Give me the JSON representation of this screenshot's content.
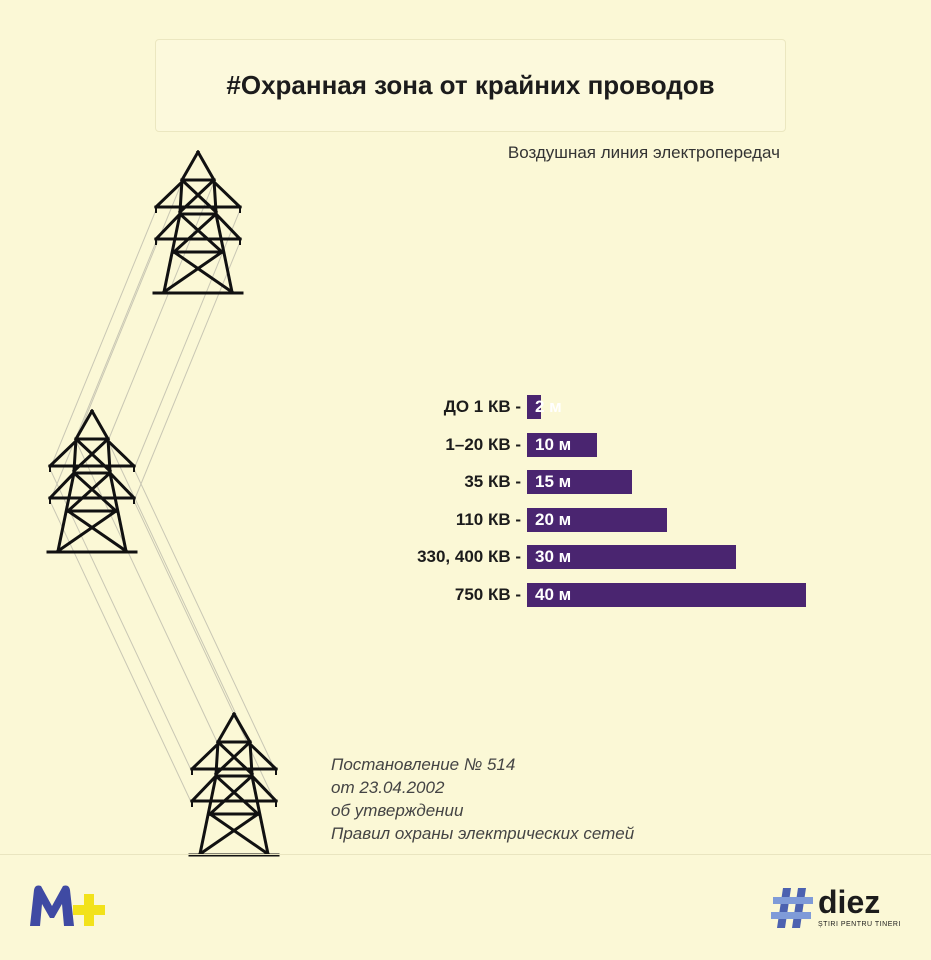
{
  "title": "#Охранная зона от крайних проводов",
  "subtitle": "Воздушная линия электропередач",
  "chart_data": {
    "type": "bar",
    "orientation": "horizontal",
    "categories": [
      "ДО 1 КВ -",
      "1–20 КВ -",
      "35 КВ -",
      "110 КВ -",
      "330, 400 КВ -",
      "750 КВ -"
    ],
    "values": [
      2,
      10,
      15,
      20,
      30,
      40
    ],
    "value_labels": [
      "2 м",
      "10 м",
      "15 м",
      "20 м",
      "30 м",
      "40 м"
    ],
    "bar_color": "#4a2570"
  },
  "note": [
    "Постановление № 514",
    "от 23.04.2002",
    "об утверждении",
    "Правил охраны электрических сетей"
  ],
  "logos": {
    "left": "M+",
    "right_name": "diez",
    "right_tagline": "ȘTIRI PENTRU TINERI"
  },
  "colors": {
    "background": "#fbf8d6",
    "accent": "#4a2570",
    "logo_m": "#3f4aa3",
    "logo_plus": "#f2e21a"
  }
}
